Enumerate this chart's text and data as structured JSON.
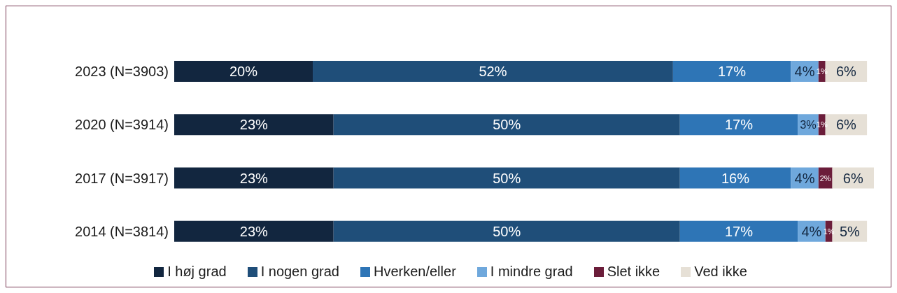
{
  "chart_data": {
    "type": "bar",
    "orientation": "horizontal",
    "stacked": true,
    "legend": "bottom",
    "categories": [
      "2023 (N=3903)",
      "2020 (N=3914)",
      "2017 (N=3917)",
      "2014 (N=3814)"
    ],
    "series": [
      {
        "name": "I høj grad",
        "color": "#12263f",
        "values": [
          20,
          23,
          23,
          23
        ],
        "value_labels": [
          "20%",
          "23%",
          "23%",
          "23%"
        ]
      },
      {
        "name": "I nogen grad",
        "color": "#1f4e79",
        "values": [
          52,
          50,
          50,
          50
        ],
        "value_labels": [
          "52%",
          "50%",
          "50%",
          "50%"
        ]
      },
      {
        "name": "Hverken/eller",
        "color": "#2e75b6",
        "values": [
          17,
          17,
          16,
          17
        ],
        "value_labels": [
          "17%",
          "17%",
          "16%",
          "17%"
        ]
      },
      {
        "name": "I mindre grad",
        "color": "#6fa8dc",
        "values": [
          4,
          3,
          4,
          4
        ],
        "value_labels": [
          "4%",
          "3%",
          "4%",
          "4%"
        ]
      },
      {
        "name": "Slet ikke",
        "color": "#6b1d3a",
        "values": [
          1,
          1,
          2,
          1
        ],
        "value_labels": [
          "1%",
          "1%",
          "2%",
          "1%"
        ]
      },
      {
        "name": "Ved ikke",
        "color": "#e6e0d6",
        "values": [
          6,
          6,
          6,
          5
        ],
        "value_labels": [
          "6%",
          "6%",
          "6%",
          "5%"
        ]
      }
    ]
  }
}
